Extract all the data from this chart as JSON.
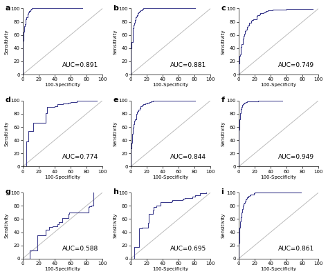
{
  "panels": [
    {
      "label": "a",
      "auc": 0.891
    },
    {
      "label": "b",
      "auc": 0.881
    },
    {
      "label": "c",
      "auc": 0.749
    },
    {
      "label": "d",
      "auc": 0.774
    },
    {
      "label": "e",
      "auc": 0.844
    },
    {
      "label": "f",
      "auc": 0.949
    },
    {
      "label": "g",
      "auc": 0.588
    },
    {
      "label": "h",
      "auc": 0.695
    },
    {
      "label": "i",
      "auc": 0.861
    }
  ],
  "curve_color": "#3b3b8c",
  "diag_color": "#bbbbbb",
  "xlabel": "100-Specificity",
  "ylabel": "Sensitivity",
  "background": "#ffffff",
  "auc_fontsize": 6.5,
  "label_fontsize": 8,
  "tick_fontsize": 5,
  "axis_label_fontsize": 5
}
